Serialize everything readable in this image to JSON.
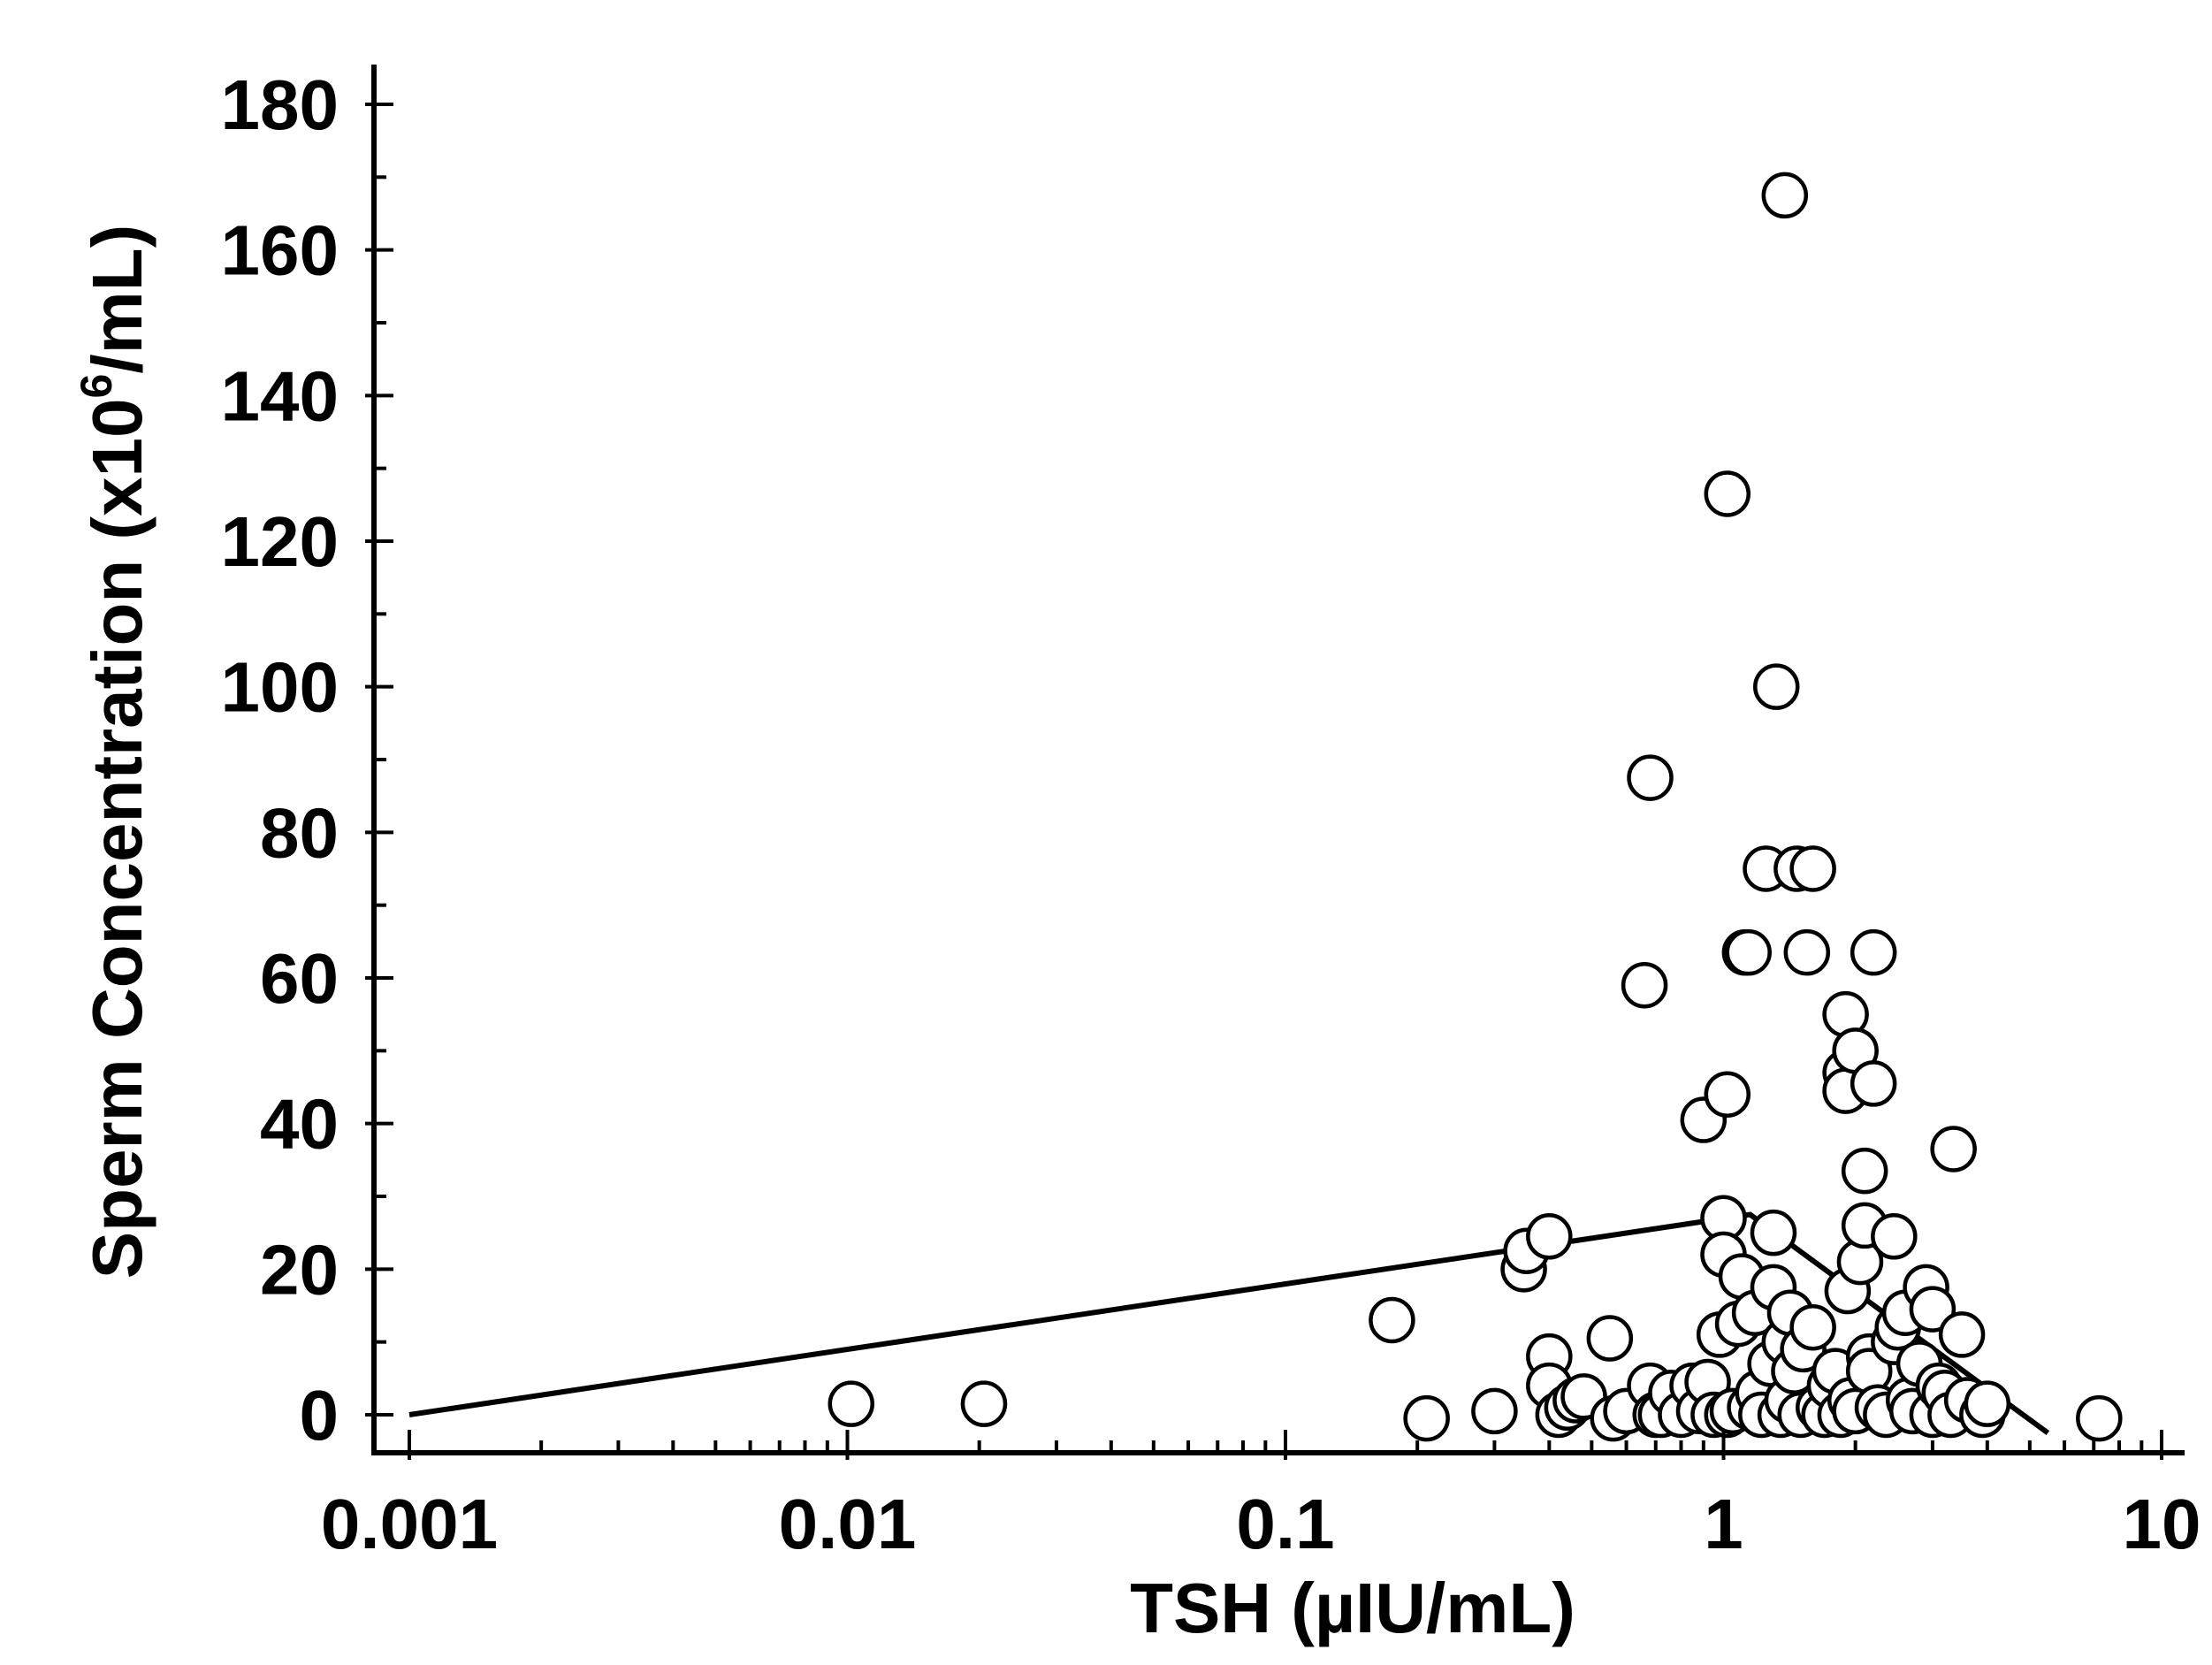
{
  "chart_data": {
    "type": "scatter",
    "title": "",
    "xlabel": "TSH (µIU/mL)",
    "ylabel_main": "Sperm Concentration (x10",
    "ylabel_sup": "6",
    "ylabel_end": "/mL)",
    "xscale": "log",
    "xlim": [
      0.001,
      10
    ],
    "ylim": [
      -5,
      185
    ],
    "x_ticks": [
      {
        "value": 0.001,
        "label": "0.001"
      },
      {
        "value": 0.01,
        "label": "0.01"
      },
      {
        "value": 0.1,
        "label": "0.1"
      },
      {
        "value": 1,
        "label": "1"
      },
      {
        "value": 10,
        "label": "10"
      }
    ],
    "y_ticks": [
      {
        "value": 0,
        "label": "0"
      },
      {
        "value": 20,
        "label": "20"
      },
      {
        "value": 40,
        "label": "40"
      },
      {
        "value": 60,
        "label": "60"
      },
      {
        "value": 80,
        "label": "80"
      },
      {
        "value": 100,
        "label": "100"
      },
      {
        "value": 120,
        "label": "120"
      },
      {
        "value": 140,
        "label": "140"
      },
      {
        "value": 160,
        "label": "160"
      },
      {
        "value": 180,
        "label": "180"
      }
    ],
    "fit_line": {
      "x": [
        0.001,
        1.15,
        5.5
      ],
      "y": [
        0,
        27.5,
        -2.5
      ]
    },
    "points": [
      {
        "x": 0.0102,
        "y": 1.5
      },
      {
        "x": 0.0205,
        "y": 1.5
      },
      {
        "x": 0.175,
        "y": 13
      },
      {
        "x": 0.21,
        "y": -0.5
      },
      {
        "x": 0.3,
        "y": 0.5
      },
      {
        "x": 0.35,
        "y": 20
      },
      {
        "x": 0.355,
        "y": 22.5
      },
      {
        "x": 0.4,
        "y": 24.5
      },
      {
        "x": 0.4,
        "y": 8
      },
      {
        "x": 0.4,
        "y": 4
      },
      {
        "x": 0.42,
        "y": 0
      },
      {
        "x": 0.44,
        "y": 1
      },
      {
        "x": 0.46,
        "y": 2
      },
      {
        "x": 0.48,
        "y": 2.5
      },
      {
        "x": 0.55,
        "y": 10.5
      },
      {
        "x": 0.56,
        "y": -0.5
      },
      {
        "x": 0.6,
        "y": 0.5
      },
      {
        "x": 0.66,
        "y": 59
      },
      {
        "x": 0.68,
        "y": 87.5
      },
      {
        "x": 0.68,
        "y": 4
      },
      {
        "x": 0.7,
        "y": 0
      },
      {
        "x": 0.72,
        "y": 0
      },
      {
        "x": 0.76,
        "y": 3
      },
      {
        "x": 0.8,
        "y": 0
      },
      {
        "x": 0.85,
        "y": 4
      },
      {
        "x": 0.88,
        "y": 0.5
      },
      {
        "x": 0.9,
        "y": 40.5
      },
      {
        "x": 0.92,
        "y": 4.5
      },
      {
        "x": 0.95,
        "y": 0
      },
      {
        "x": 0.98,
        "y": 11
      },
      {
        "x": 1.0,
        "y": 27
      },
      {
        "x": 1.0,
        "y": 22
      },
      {
        "x": 1.02,
        "y": 44
      },
      {
        "x": 1.02,
        "y": 126.5
      },
      {
        "x": 1.02,
        "y": 0
      },
      {
        "x": 1.05,
        "y": 0.5
      },
      {
        "x": 1.08,
        "y": 12.5
      },
      {
        "x": 1.1,
        "y": 19
      },
      {
        "x": 1.12,
        "y": 63.5
      },
      {
        "x": 1.14,
        "y": 63.5
      },
      {
        "x": 1.15,
        "y": 1
      },
      {
        "x": 1.18,
        "y": 14
      },
      {
        "x": 1.2,
        "y": 3
      },
      {
        "x": 1.22,
        "y": 0
      },
      {
        "x": 1.25,
        "y": 75
      },
      {
        "x": 1.28,
        "y": 7
      },
      {
        "x": 1.3,
        "y": 25
      },
      {
        "x": 1.3,
        "y": 17.5
      },
      {
        "x": 1.32,
        "y": 100
      },
      {
        "x": 1.35,
        "y": 0
      },
      {
        "x": 1.38,
        "y": 10
      },
      {
        "x": 1.38,
        "y": 167.5
      },
      {
        "x": 1.4,
        "y": 2
      },
      {
        "x": 1.42,
        "y": 14
      },
      {
        "x": 1.45,
        "y": 6
      },
      {
        "x": 1.47,
        "y": 75
      },
      {
        "x": 1.5,
        "y": 0
      },
      {
        "x": 1.52,
        "y": 9
      },
      {
        "x": 1.55,
        "y": 63.5
      },
      {
        "x": 1.6,
        "y": 75
      },
      {
        "x": 1.6,
        "y": 12
      },
      {
        "x": 1.65,
        "y": 1
      },
      {
        "x": 1.7,
        "y": 0
      },
      {
        "x": 1.75,
        "y": 4
      },
      {
        "x": 1.8,
        "y": 6
      },
      {
        "x": 1.85,
        "y": 0
      },
      {
        "x": 1.9,
        "y": 55
      },
      {
        "x": 1.9,
        "y": 47
      },
      {
        "x": 1.9,
        "y": 44.5
      },
      {
        "x": 1.92,
        "y": 17
      },
      {
        "x": 1.95,
        "y": 2
      },
      {
        "x": 2.0,
        "y": 50
      },
      {
        "x": 2.0,
        "y": 0.5
      },
      {
        "x": 2.05,
        "y": 21
      },
      {
        "x": 2.1,
        "y": 26
      },
      {
        "x": 2.1,
        "y": 33.5
      },
      {
        "x": 2.15,
        "y": 8
      },
      {
        "x": 2.15,
        "y": 6
      },
      {
        "x": 2.2,
        "y": 63.5
      },
      {
        "x": 2.2,
        "y": 45.5
      },
      {
        "x": 2.25,
        "y": 1
      },
      {
        "x": 2.35,
        "y": 0
      },
      {
        "x": 2.45,
        "y": 24.5
      },
      {
        "x": 2.45,
        "y": 10
      },
      {
        "x": 2.5,
        "y": 12
      },
      {
        "x": 2.6,
        "y": 14
      },
      {
        "x": 2.65,
        "y": 2
      },
      {
        "x": 2.7,
        "y": 0.5
      },
      {
        "x": 2.8,
        "y": 7
      },
      {
        "x": 2.9,
        "y": 17.5
      },
      {
        "x": 3.0,
        "y": 14.5
      },
      {
        "x": 3.0,
        "y": 0
      },
      {
        "x": 3.1,
        "y": 4
      },
      {
        "x": 3.2,
        "y": 3
      },
      {
        "x": 3.3,
        "y": 0
      },
      {
        "x": 3.35,
        "y": 36.5
      },
      {
        "x": 3.5,
        "y": 11
      },
      {
        "x": 3.6,
        "y": 2
      },
      {
        "x": 3.9,
        "y": 0
      },
      {
        "x": 4.0,
        "y": 1.5
      },
      {
        "x": 7.2,
        "y": -0.5
      }
    ]
  }
}
